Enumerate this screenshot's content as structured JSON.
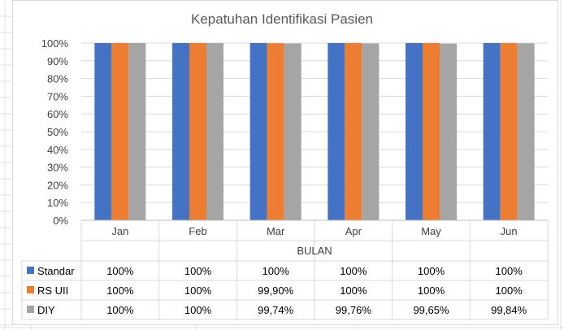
{
  "chart_data": {
    "type": "bar",
    "title": "Kepatuhan Identifikasi Pasien",
    "xlabel": "BULAN",
    "ylabel": "",
    "categories": [
      "Jan",
      "Feb",
      "Mar",
      "Apr",
      "May",
      "Jun"
    ],
    "ylim": [
      0,
      100
    ],
    "y_ticks": [
      "0%",
      "10%",
      "20%",
      "30%",
      "40%",
      "50%",
      "60%",
      "70%",
      "80%",
      "90%",
      "100%"
    ],
    "grid": true,
    "legend": "data-table",
    "series": [
      {
        "name": "Standar",
        "color": "#4472C4",
        "values": [
          100,
          100,
          100,
          100,
          100,
          100
        ],
        "labels": [
          "100%",
          "100%",
          "100%",
          "100%",
          "100%",
          "100%"
        ]
      },
      {
        "name": "RS UII",
        "color": "#ED7D31",
        "values": [
          100,
          100,
          99.9,
          100,
          100,
          100
        ],
        "labels": [
          "100%",
          "100%",
          "99,90%",
          "100%",
          "100%",
          "100%"
        ]
      },
      {
        "name": "DIY",
        "color": "#A5A5A5",
        "values": [
          100,
          100,
          99.74,
          99.76,
          99.65,
          99.84
        ],
        "labels": [
          "100%",
          "100%",
          "99,74%",
          "99,76%",
          "99,65%",
          "99,84%"
        ]
      }
    ]
  }
}
